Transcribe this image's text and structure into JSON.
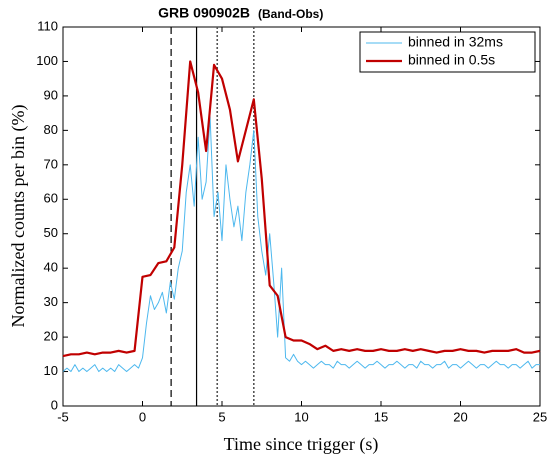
{
  "chart_data": {
    "type": "line",
    "title": "GRB 090902B",
    "subtitle": "(Band-Obs)",
    "xlabel": "Time since trigger (s)",
    "ylabel": "Normalized counts per bin (%)",
    "xlim": [
      -5,
      25
    ],
    "xticks": [
      -5,
      0,
      5,
      10,
      15,
      20,
      25
    ],
    "ylim": [
      0,
      110
    ],
    "yticks": [
      0,
      10,
      20,
      30,
      40,
      50,
      60,
      70,
      80,
      90,
      100,
      110
    ],
    "legend": "upper right",
    "vertical_lines": [
      {
        "x": 1.8,
        "style": "dashed",
        "color": "#000000"
      },
      {
        "x": 3.4,
        "style": "solid",
        "color": "#000000"
      },
      {
        "x": 4.7,
        "style": "dotted",
        "color": "#555555"
      },
      {
        "x": 7.0,
        "style": "dotted",
        "color": "#555555"
      }
    ],
    "series": [
      {
        "name": "binned in 32ms",
        "color": "#4db8ee",
        "width": 1,
        "x": [
          -5,
          -4.75,
          -4.5,
          -4.25,
          -4,
          -3.75,
          -3.5,
          -3.25,
          -3,
          -2.75,
          -2.5,
          -2.25,
          -2,
          -1.75,
          -1.5,
          -1.25,
          -1,
          -0.75,
          -0.5,
          -0.25,
          0,
          0.25,
          0.5,
          0.75,
          1,
          1.25,
          1.5,
          1.75,
          2,
          2.25,
          2.5,
          2.75,
          3,
          3.25,
          3.5,
          3.75,
          4,
          4.25,
          4.5,
          4.75,
          5,
          5.25,
          5.5,
          5.75,
          6,
          6.25,
          6.5,
          6.75,
          7,
          7.25,
          7.5,
          7.75,
          8,
          8.25,
          8.5,
          8.75,
          9,
          9.25,
          9.5,
          9.75,
          10,
          10.25,
          10.5,
          10.75,
          11,
          11.25,
          11.5,
          11.75,
          12,
          12.25,
          12.5,
          12.75,
          13,
          13.25,
          13.5,
          13.75,
          14,
          14.25,
          14.5,
          14.75,
          15,
          15.25,
          15.5,
          15.75,
          16,
          16.25,
          16.5,
          16.75,
          17,
          17.25,
          17.5,
          17.75,
          18,
          18.25,
          18.5,
          18.75,
          19,
          19.25,
          19.5,
          19.75,
          20,
          20.25,
          20.5,
          20.75,
          21,
          21.25,
          21.5,
          21.75,
          22,
          22.25,
          22.5,
          22.75,
          23,
          23.25,
          23.5,
          23.75,
          24,
          24.25,
          24.5,
          24.75,
          25
        ],
        "values": [
          10,
          11,
          10,
          12,
          10,
          11,
          10,
          11,
          12,
          10,
          11,
          10,
          11,
          10,
          12,
          11,
          10,
          11,
          12,
          11,
          14,
          24,
          32,
          28,
          30,
          33,
          27,
          36,
          31,
          40,
          45,
          62,
          70,
          58,
          78,
          60,
          65,
          84,
          55,
          62,
          48,
          70,
          60,
          52,
          58,
          48,
          62,
          70,
          80,
          55,
          45,
          38,
          50,
          36,
          20,
          40,
          14,
          13,
          15,
          13,
          12,
          13,
          12,
          11,
          12,
          13,
          12,
          12,
          11,
          13,
          12,
          12,
          11,
          12,
          13,
          12,
          11,
          12,
          12,
          13,
          12,
          11,
          12,
          12,
          13,
          12,
          11,
          12,
          12,
          11,
          13,
          12,
          12,
          11,
          12,
          12,
          13,
          11,
          12,
          12,
          11,
          12,
          13,
          12,
          11,
          12,
          12,
          11,
          12,
          13,
          12,
          12,
          11,
          12,
          12,
          11,
          12,
          13,
          11,
          12,
          12
        ]
      },
      {
        "name": "binned in 0.5s",
        "color": "#c00000",
        "width": 2.2,
        "x": [
          -5,
          -4.5,
          -4,
          -3.5,
          -3,
          -2.5,
          -2,
          -1.5,
          -1,
          -0.5,
          0,
          0.5,
          1,
          1.5,
          2,
          2.5,
          3,
          3.5,
          4,
          4.5,
          5,
          5.5,
          6,
          6.5,
          7,
          7.5,
          8,
          8.5,
          9,
          9.5,
          10,
          10.5,
          11,
          11.5,
          12,
          12.5,
          13,
          13.5,
          14,
          14.5,
          15,
          15.5,
          16,
          16.5,
          17,
          17.5,
          18,
          18.5,
          19,
          19.5,
          20,
          20.5,
          21,
          21.5,
          22,
          22.5,
          23,
          23.5,
          24,
          24.5,
          25
        ],
        "values": [
          14.5,
          15,
          15,
          15.5,
          15,
          15.5,
          15.5,
          16,
          15.5,
          16,
          37.5,
          38,
          41.5,
          42,
          46,
          70,
          100,
          91,
          74,
          99,
          95,
          86,
          71,
          80,
          89,
          66,
          35,
          32,
          20,
          19,
          19,
          18,
          16.5,
          17.5,
          16,
          16.5,
          16,
          16.5,
          16,
          16,
          16.5,
          16,
          16,
          16.5,
          16,
          16.5,
          16,
          15.5,
          16,
          16,
          16.5,
          16,
          16,
          15.5,
          16,
          16,
          16,
          16.5,
          15.5,
          15.5,
          16
        ]
      }
    ]
  }
}
